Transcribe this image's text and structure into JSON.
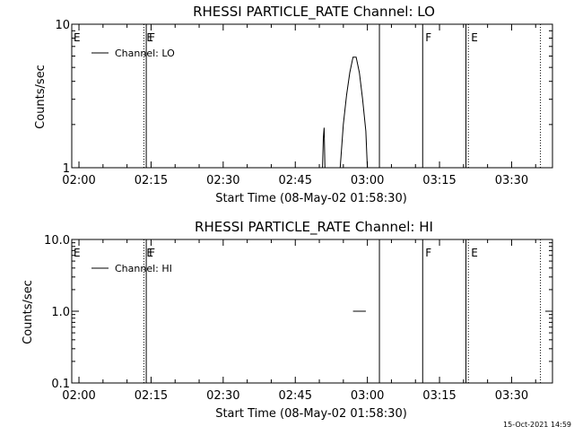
{
  "footer_stamp": "15-Oct-2021 14:59",
  "chart_data": [
    {
      "type": "line",
      "title": "RHESSI PARTICLE_RATE Channel: LO",
      "xlabel": "Start Time (08-May-02 01:58:30)",
      "ylabel": "Counts/sec",
      "y_scale": "log",
      "ylim": [
        1,
        10
      ],
      "y_ticks": [
        1,
        10
      ],
      "y_tick_labels": [
        "1",
        "10"
      ],
      "xlim": [
        "01:58:30",
        "03:38:30"
      ],
      "x_ticks": [
        "02:00",
        "02:15",
        "02:30",
        "02:45",
        "03:00",
        "03:15",
        "03:30"
      ],
      "legend": {
        "placement": "top-left",
        "entries": [
          "Channel: LO"
        ]
      },
      "grid": false,
      "markers": [
        {
          "time": "02:13:30",
          "label": "E",
          "style": "dotted"
        },
        {
          "time": "02:14:00",
          "label": "F",
          "style": "solid"
        },
        {
          "time": "03:02:30",
          "label": "",
          "style": "solid"
        },
        {
          "time": "03:11:30",
          "label": "F",
          "style": "solid"
        },
        {
          "time": "03:20:30",
          "label": "",
          "style": "solid"
        },
        {
          "time": "03:21:00",
          "label": "E",
          "style": "dotted"
        },
        {
          "time": "03:36:00",
          "label": "",
          "style": "dotted"
        }
      ],
      "edge_labels": [
        {
          "label": "E",
          "position": "left"
        }
      ],
      "series": [
        {
          "segments": [
            {
              "x": [
                "02:50:40",
                "02:50:50",
                "02:51:00",
                "02:51:10"
              ],
              "y": [
                1.0,
                1.6,
                1.9,
                1.0
              ]
            },
            {
              "x": [
                "02:54:20",
                "02:55:00",
                "02:55:40",
                "02:56:20",
                "02:57:00",
                "02:57:40",
                "02:58:20",
                "02:59:00",
                "02:59:40",
                "03:00:00"
              ],
              "y": [
                1.0,
                2.0,
                3.2,
                4.6,
                5.9,
                5.9,
                4.6,
                3.0,
                1.8,
                1.0
              ]
            }
          ]
        }
      ]
    },
    {
      "type": "line",
      "title": "RHESSI PARTICLE_RATE Channel: HI",
      "xlabel": "Start Time (08-May-02 01:58:30)",
      "ylabel": "Counts/sec",
      "y_scale": "log",
      "ylim": [
        0.1,
        10
      ],
      "y_ticks": [
        0.1,
        1.0,
        10.0
      ],
      "y_tick_labels": [
        "0.1",
        "1.0",
        "10.0"
      ],
      "xlim": [
        "01:58:30",
        "03:38:30"
      ],
      "x_ticks": [
        "02:00",
        "02:15",
        "02:30",
        "02:45",
        "03:00",
        "03:15",
        "03:30"
      ],
      "legend": {
        "placement": "top-left",
        "entries": [
          "Channel: HI"
        ]
      },
      "grid": false,
      "markers": [
        {
          "time": "02:13:30",
          "label": "E",
          "style": "dotted"
        },
        {
          "time": "02:14:00",
          "label": "F",
          "style": "solid"
        },
        {
          "time": "03:02:30",
          "label": "",
          "style": "solid"
        },
        {
          "time": "03:11:30",
          "label": "F",
          "style": "solid"
        },
        {
          "time": "03:20:30",
          "label": "",
          "style": "solid"
        },
        {
          "time": "03:21:00",
          "label": "E",
          "style": "dotted"
        },
        {
          "time": "03:36:00",
          "label": "",
          "style": "dotted"
        }
      ],
      "edge_labels": [
        {
          "label": "E",
          "position": "left"
        }
      ],
      "series": [
        {
          "segments": [
            {
              "x": [
                "02:57:00",
                "02:59:40"
              ],
              "y": [
                1.0,
                1.0
              ]
            },
            {
              "x": [
                "03:38:00",
                "03:38:30"
              ],
              "y": [
                1.0,
                1.0
              ]
            }
          ]
        }
      ]
    }
  ]
}
